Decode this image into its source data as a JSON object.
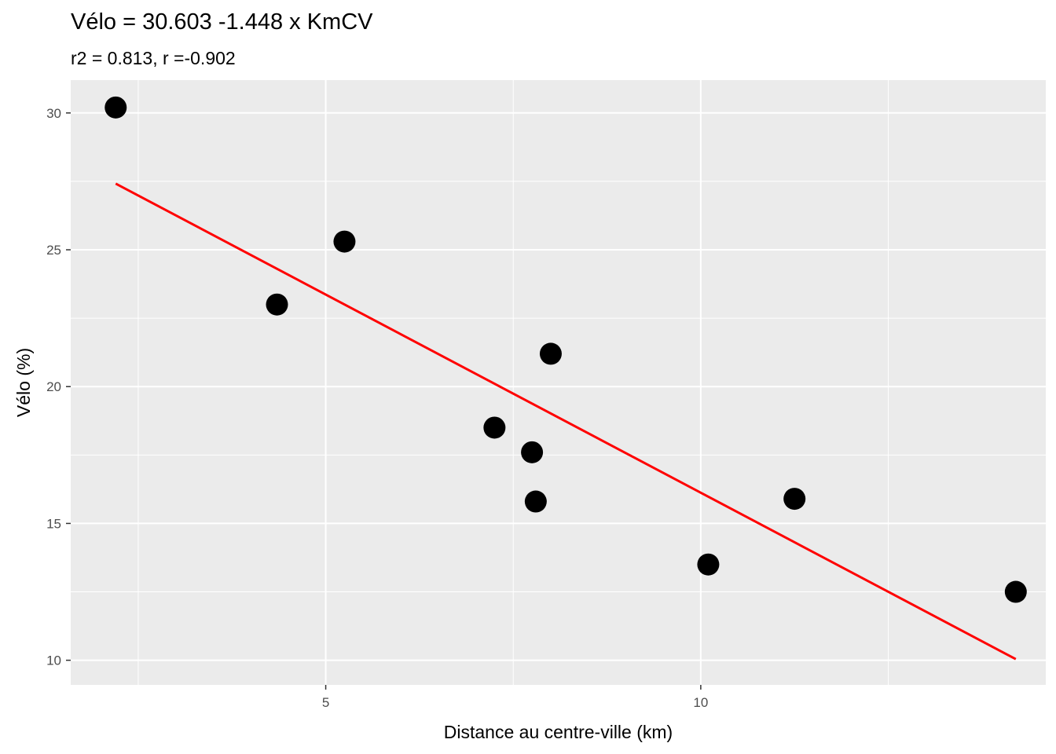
{
  "chart_data": {
    "type": "scatter",
    "title": "Vélo = 30.603 -1.448 x KmCV",
    "subtitle": "r2 = 0.813, r =-0.902",
    "xlabel": "Distance au centre-ville (km)",
    "ylabel": "Vélo (%)",
    "xlim": [
      1.6,
      14.6
    ],
    "ylim": [
      9.1,
      31.2
    ],
    "x_ticks": [
      5,
      10
    ],
    "x_tick_labels": [
      "5",
      "10"
    ],
    "y_ticks": [
      10,
      15,
      20,
      25,
      30
    ],
    "y_tick_labels": [
      "10",
      "15",
      "20",
      "25",
      "30"
    ],
    "grid": true,
    "background": "#ebebeb",
    "gridline_color": "#ffffff",
    "point_color": "#000000",
    "points": [
      {
        "x": 2.2,
        "y": 30.2
      },
      {
        "x": 4.35,
        "y": 23.0
      },
      {
        "x": 5.25,
        "y": 25.3
      },
      {
        "x": 7.25,
        "y": 18.5
      },
      {
        "x": 7.75,
        "y": 17.6
      },
      {
        "x": 7.8,
        "y": 15.8
      },
      {
        "x": 8.0,
        "y": 21.2
      },
      {
        "x": 10.1,
        "y": 13.5
      },
      {
        "x": 11.25,
        "y": 15.9
      },
      {
        "x": 14.2,
        "y": 12.5
      }
    ],
    "fit_line": {
      "intercept": 30.603,
      "slope": -1.448,
      "x_range": [
        2.2,
        14.2
      ],
      "color": "#ff0000"
    }
  }
}
